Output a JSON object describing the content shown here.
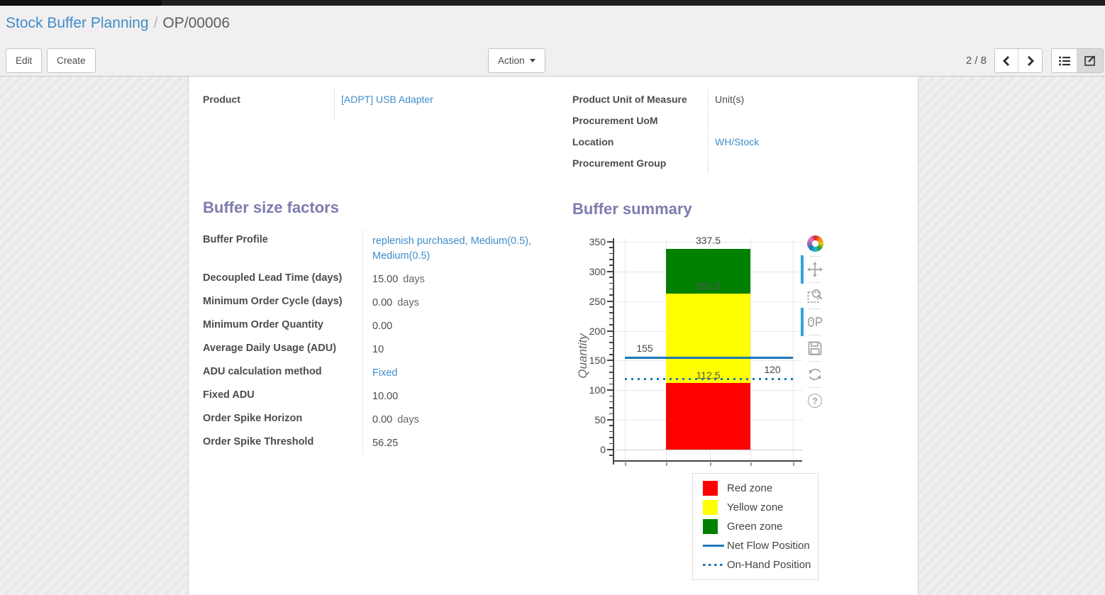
{
  "breadcrumb": {
    "section": "Stock Buffer Planning",
    "separator": "/",
    "record": "OP/00006"
  },
  "toolbar": {
    "edit_label": "Edit",
    "create_label": "Create",
    "action_label": "Action",
    "pager": {
      "count": "2 / 8"
    }
  },
  "form": {
    "left_fields": [
      {
        "label": "Product",
        "value": "[ADPT] USB Adapter",
        "is_link": true
      }
    ],
    "right_fields": [
      {
        "label": "Product Unit of Measure",
        "value": "Unit(s)",
        "is_link": false
      },
      {
        "label": "Procurement UoM",
        "value": "",
        "is_link": false
      },
      {
        "label": "Location",
        "value": "WH/Stock",
        "is_link": true
      },
      {
        "label": "Procurement Group",
        "value": "",
        "is_link": false
      }
    ],
    "buffer_size_factors": {
      "title": "Buffer size factors",
      "rows": [
        {
          "label": "Buffer Profile",
          "value": "replenish purchased, Medium(0.5), Medium(0.5)",
          "unit": "",
          "is_link": true
        },
        {
          "label": "Decoupled Lead Time (days)",
          "value": "15.00",
          "unit": "days",
          "is_link": false
        },
        {
          "label": "Minimum Order Cycle (days)",
          "value": "0.00",
          "unit": "days",
          "is_link": false
        },
        {
          "label": "Minimum Order Quantity",
          "value": "0.00",
          "unit": "",
          "is_link": false
        },
        {
          "label": "Average Daily Usage (ADU)",
          "value": "10",
          "unit": "",
          "is_link": false
        },
        {
          "label": "ADU calculation method",
          "value": "Fixed",
          "unit": "",
          "is_link": true
        },
        {
          "label": "Fixed ADU",
          "value": "10.00",
          "unit": "",
          "is_link": false
        },
        {
          "label": "Order Spike Horizon",
          "value": "0.00",
          "unit": "days",
          "is_link": false
        },
        {
          "label": "Order Spike Threshold",
          "value": "56.25",
          "unit": "",
          "is_link": false
        }
      ]
    },
    "buffer_summary": {
      "title": "Buffer summary"
    }
  },
  "chart_data": {
    "type": "bar",
    "title": "Buffer summary",
    "xlabel": "",
    "ylabel": "Quantity",
    "ylim": [
      0,
      350
    ],
    "yticks": [
      0,
      50,
      100,
      150,
      200,
      250,
      300,
      350
    ],
    "grid": true,
    "legend_position": "bottom-right",
    "series": [
      {
        "name": "Red zone",
        "color": "#ff0000",
        "from": 0,
        "to": 112.5
      },
      {
        "name": "Yellow zone",
        "color": "#ffff00",
        "from": 112.5,
        "to": 262.5
      },
      {
        "name": "Green zone",
        "color": "#008000",
        "from": 262.5,
        "to": 337.5
      }
    ],
    "lines": [
      {
        "name": "Net Flow Position",
        "value": 155,
        "style": "solid",
        "color": "#1f77b4",
        "label": "155",
        "label_side": "left"
      },
      {
        "name": "On-Hand Position",
        "value": 120,
        "style": "dotted",
        "color": "#1f77b4",
        "label": "120",
        "label_side": "right"
      }
    ],
    "annotations": [
      {
        "text": "337.5",
        "y": 337.5,
        "placement": "bar-top"
      },
      {
        "text": "262.5",
        "y": 262.5,
        "placement": "bar-inside"
      },
      {
        "text": "112.5",
        "y": 112.5,
        "placement": "bar-inside"
      },
      {
        "text": "155",
        "y": 155,
        "placement": "line-left"
      },
      {
        "text": "120",
        "y": 120,
        "placement": "line-right"
      }
    ],
    "legend": [
      {
        "label": "Red zone",
        "swatch": "square",
        "color": "#ff0000"
      },
      {
        "label": "Yellow zone",
        "swatch": "square",
        "color": "#ffff00"
      },
      {
        "label": "Green zone",
        "swatch": "square",
        "color": "#008000"
      },
      {
        "label": "Net Flow Position",
        "swatch": "line",
        "color": "#1f77b4"
      },
      {
        "label": "On-Hand Position",
        "swatch": "dotted",
        "color": "#1f77b4"
      }
    ]
  },
  "modebar_icons": [
    {
      "name": "plotly-logo",
      "active": false
    },
    {
      "name": "pan-icon",
      "active": true
    },
    {
      "name": "zoom-select-icon",
      "active": false
    },
    {
      "name": "compare-hover-icon",
      "active": true
    },
    {
      "name": "save-icon",
      "active": false
    },
    {
      "name": "reset-axes-icon",
      "active": false
    },
    {
      "name": "help-icon",
      "active": false
    }
  ],
  "colors": {
    "accent_link": "#3f8dca",
    "section_heading": "#7d7cad",
    "net_flow_line": "#1f77b4",
    "red_zone": "#ff0000",
    "yellow_zone": "#ffff00",
    "green_zone": "#008000"
  }
}
